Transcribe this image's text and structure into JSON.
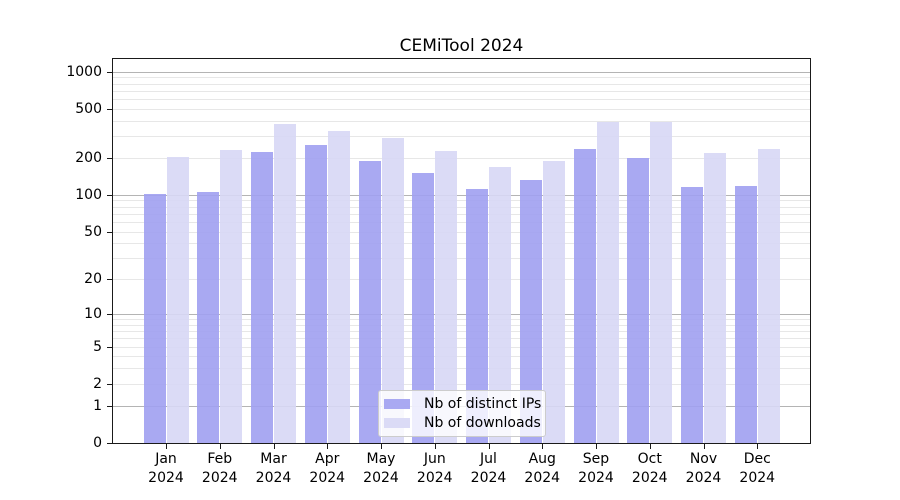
{
  "chart_data": {
    "type": "bar",
    "title": "CEMiTool 2024",
    "categories": [
      "Jan 2024",
      "Feb 2024",
      "Mar 2024",
      "Apr 2024",
      "May 2024",
      "Jun 2024",
      "Jul 2024",
      "Aug 2024",
      "Sep 2024",
      "Oct 2024",
      "Nov 2024",
      "Dec 2024"
    ],
    "series": [
      {
        "name": "Nb of distinct IPs",
        "color": "#a0a0f1",
        "values": [
          101,
          105,
          225,
          255,
          190,
          152,
          112,
          133,
          235,
          200,
          117,
          119
        ]
      },
      {
        "name": "Nb of downloads",
        "color": "#d7d7f5",
        "values": [
          204,
          232,
          380,
          332,
          290,
          228,
          170,
          188,
          393,
          393,
          221,
          238
        ]
      }
    ],
    "xlabel": "",
    "ylabel": "",
    "y_ticks": [
      0,
      1,
      2,
      5,
      10,
      20,
      50,
      100,
      200,
      500,
      1000
    ],
    "y_scale": "log1p",
    "ylim": [
      0,
      1264
    ],
    "grid": true,
    "legend_position": "lower center",
    "colors": {
      "grid_major": "#b4b4b4",
      "grid_minor": "#e7e7e7",
      "axis": "#1a1a1a",
      "background": "#ffffff"
    }
  }
}
